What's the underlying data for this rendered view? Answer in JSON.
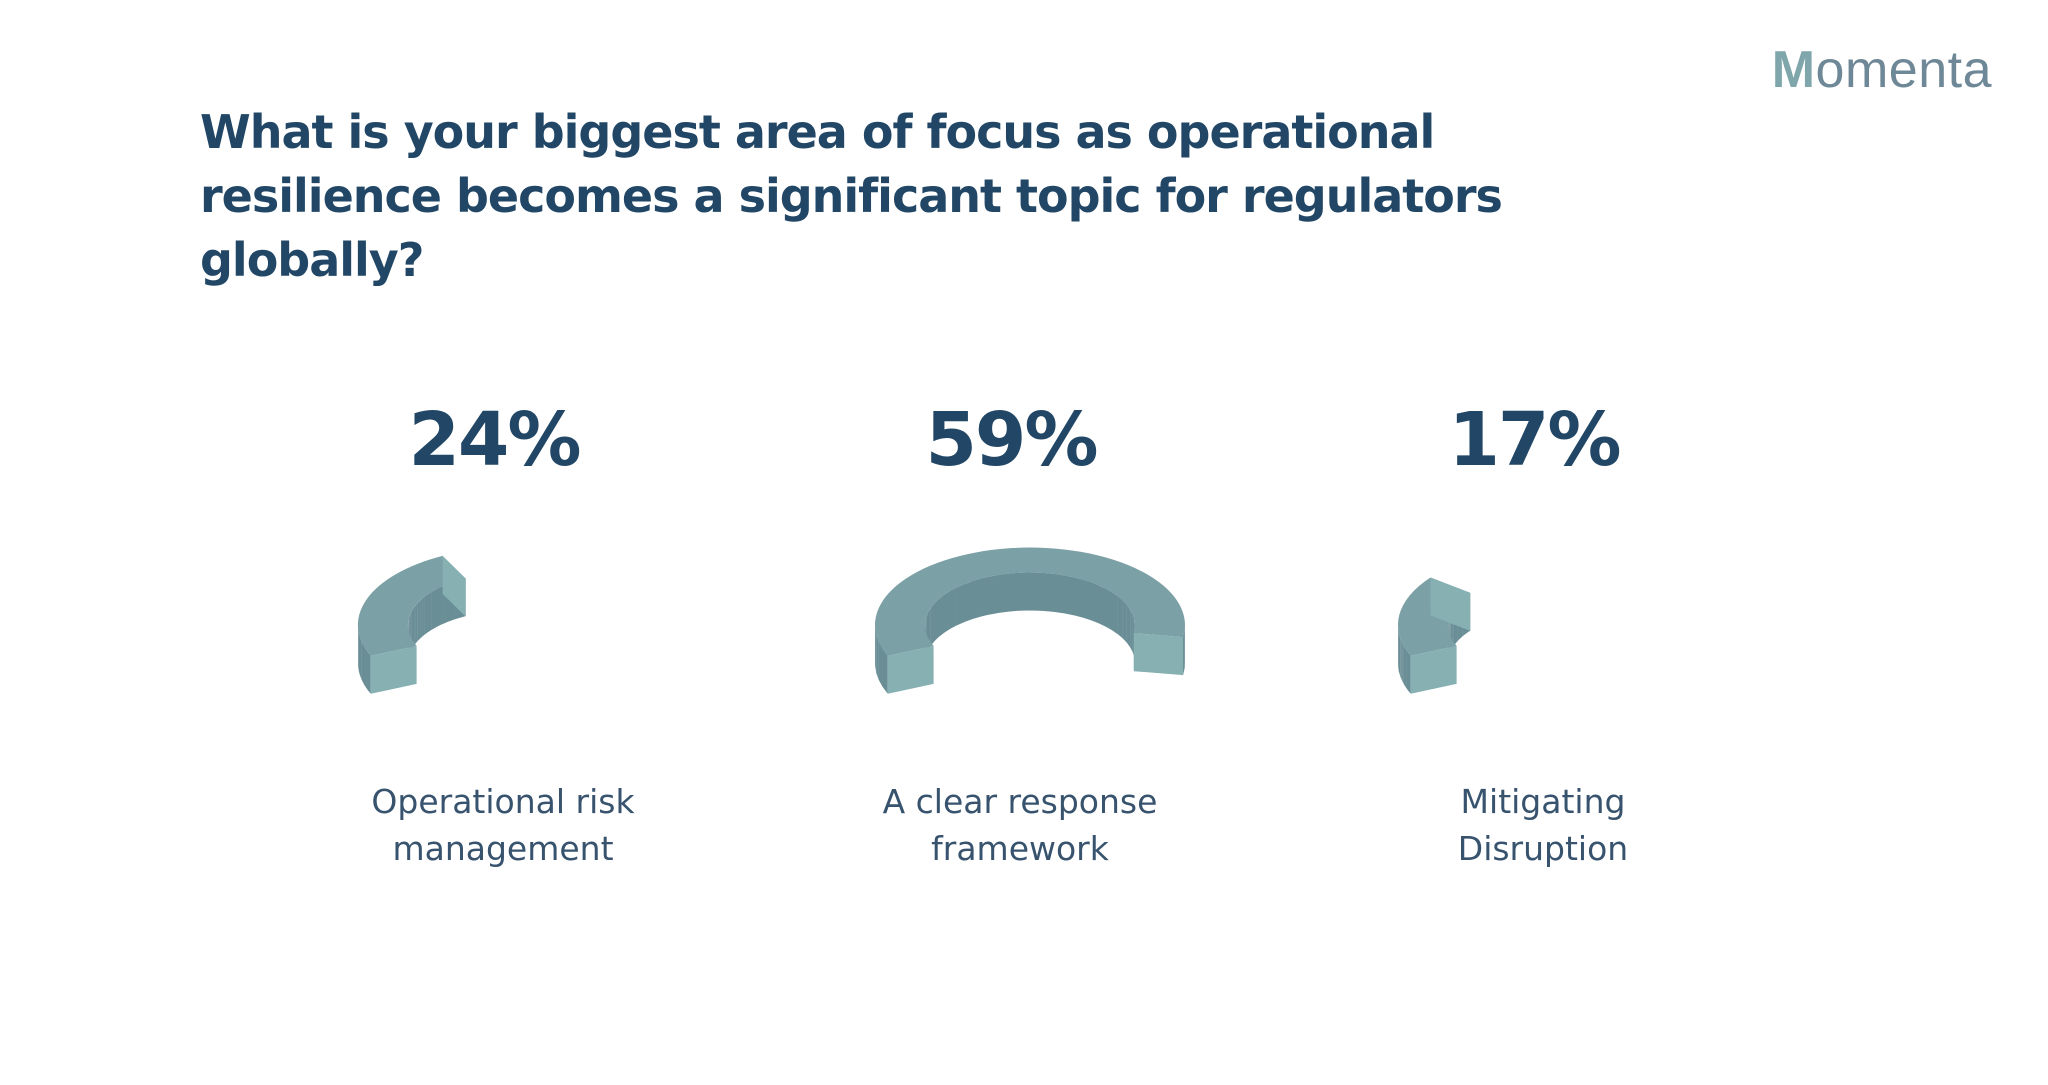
{
  "logo": {
    "initial": "M",
    "rest": "omenta"
  },
  "title": "What is your biggest area of focus as operational resilience becomes a significant topic for regulators globally?",
  "colors": {
    "title": "#224766",
    "value_label": "#224766",
    "category_label": "#38536d",
    "track": "#f0f0f0",
    "ring_top": "#7ba0a6",
    "ring_side": "#6a8e96",
    "ring_cut": "#86b0b2"
  },
  "chart_data": {
    "type": "pie",
    "categories": [
      [
        "Operational risk",
        "management"
      ],
      [
        "A clear response",
        "framework"
      ],
      [
        "Mitigating",
        "Disruption"
      ]
    ],
    "values": [
      24,
      59,
      17
    ],
    "value_labels": [
      "24%",
      "59%",
      "17%"
    ],
    "unit": "%"
  }
}
